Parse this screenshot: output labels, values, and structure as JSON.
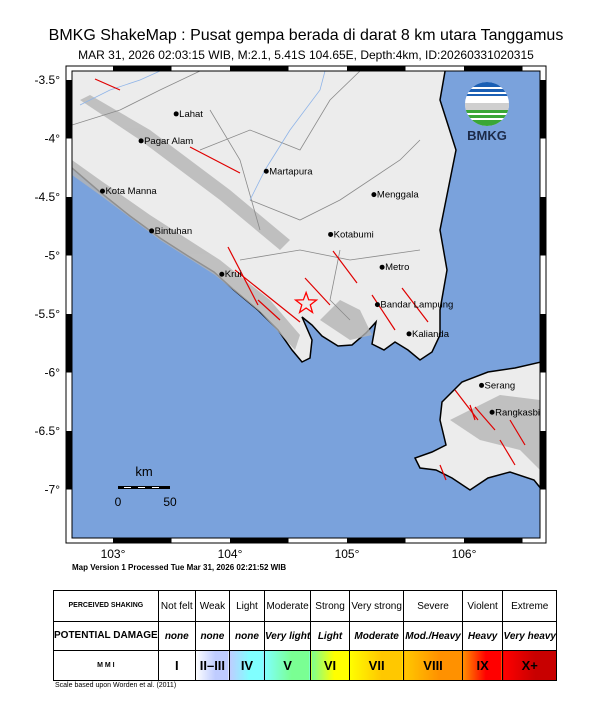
{
  "header": {
    "title": "BMKG ShakeMap : Pusat gempa berada di darat 8 km utara Tanggamus",
    "subtitle": "MAR 31, 2026 02:03:15 WIB, M:2.1, 5.41S 104.65E, Depth:4km, ID:20260331020315"
  },
  "map": {
    "lat_ticks": [
      "-3.5",
      "-4",
      "-4.5",
      "-5",
      "-5.5",
      "-6",
      "-6.5",
      "-7"
    ],
    "lat_values": [
      -3.5,
      -4,
      -4.5,
      -5,
      -5.5,
      -6,
      -6.5,
      -7
    ],
    "lon_ticks": [
      "103",
      "104",
      "105",
      "106"
    ],
    "lon_values": [
      103,
      104,
      105,
      106
    ],
    "extent": {
      "lon": [
        102.65,
        106.65
      ],
      "lat": [
        -7.42,
        -3.42
      ]
    },
    "epicenter": {
      "lon": 104.65,
      "lat": -5.41,
      "symbol": "star-icon",
      "color": "#ff0000"
    },
    "cities": [
      {
        "name": "Lahat",
        "lon": 103.54,
        "lat": -3.79
      },
      {
        "name": "Pagar Alam",
        "lon": 103.24,
        "lat": -4.02
      },
      {
        "name": "Martapura",
        "lon": 104.31,
        "lat": -4.28
      },
      {
        "name": "Menggala",
        "lon": 105.23,
        "lat": -4.48
      },
      {
        "name": "Kota Manna",
        "lon": 102.91,
        "lat": -4.45
      },
      {
        "name": "Kotabumi",
        "lon": 104.86,
        "lat": -4.82
      },
      {
        "name": "Bintuhan",
        "lon": 103.33,
        "lat": -4.79
      },
      {
        "name": "Metro",
        "lon": 105.3,
        "lat": -5.1
      },
      {
        "name": "Krui",
        "lon": 103.93,
        "lat": -5.16
      },
      {
        "name": "Bandar Lampung",
        "lon": 105.26,
        "lat": -5.42
      },
      {
        "name": "Kalianda",
        "lon": 105.53,
        "lat": -5.67
      },
      {
        "name": "Serang",
        "lon": 106.15,
        "lat": -6.11
      },
      {
        "name": "Rangkasbitung",
        "lon": 106.24,
        "lat": -6.34
      }
    ],
    "scale": {
      "unit": "km",
      "min": "0",
      "max": "50"
    },
    "logo": "BMKG",
    "colors": {
      "ocean": "#7aa2dc",
      "land": "#ececec",
      "fault": "#e00000",
      "river": "#8fb4e8"
    }
  },
  "version_text": "Map Version 1 Processed Tue Mar 31, 2026 02:21:52 WIB",
  "legend": {
    "shaking_label": "PERCEIVED SHAKING",
    "damage_label": "POTENTIAL DAMAGE",
    "mmi_label": "M M I",
    "shaking": [
      "Not felt",
      "Weak",
      "Light",
      "Moderate",
      "Strong",
      "Very strong",
      "Severe",
      "Violent",
      "Extreme"
    ],
    "damage": [
      "none",
      "none",
      "none",
      "Very light",
      "Light",
      "Moderate",
      "Mod./Heavy",
      "Heavy",
      "Very heavy"
    ],
    "mmi": [
      "I",
      "II–III",
      "IV",
      "V",
      "VI",
      "VII",
      "VIII",
      "IX",
      "X+"
    ],
    "mmi_colors": [
      "#ffffff",
      "#bfccff",
      "#80ffff",
      "#7aff93",
      "#ffff00",
      "#ffc800",
      "#ff9100",
      "#ff0000",
      "#c80000"
    ],
    "note": "Scale based upon Worden et al. (2011)"
  }
}
